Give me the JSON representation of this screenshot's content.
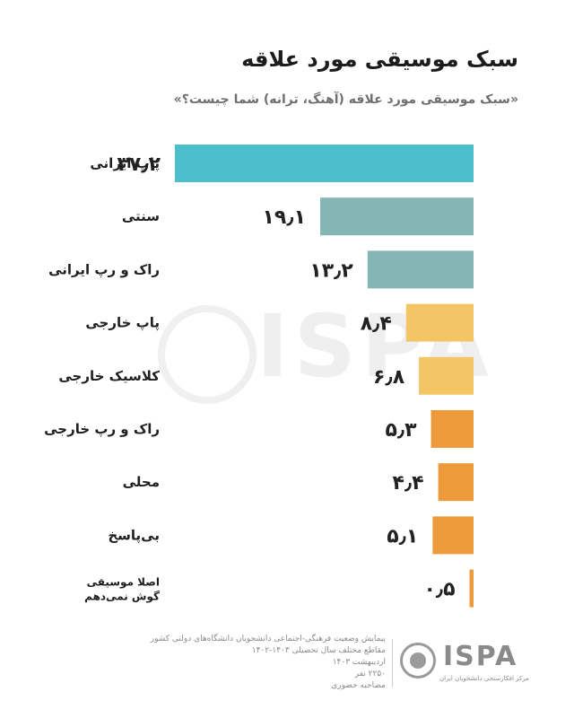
{
  "header": {
    "title": "سبک موسیقی مورد علاقه",
    "subtitle": "«سبک موسیقی مورد علاقه (آهنگ، ترانه) شما چیست؟»"
  },
  "chart_data": {
    "type": "bar",
    "orientation": "horizontal",
    "categories": [
      "پاپ ایرانی",
      "سنتی",
      "راک و رپ ایرانی",
      "پاپ خارجی",
      "کلاسیک خارجی",
      "راک و رپ خارجی",
      "محلی",
      "بی‌پاسخ",
      "اصلا موسیقی گوش نمی‌دهم"
    ],
    "category_lines": [
      [
        "پاپ ایرانی"
      ],
      [
        "سنتی"
      ],
      [
        "راک و رپ ایرانی"
      ],
      [
        "پاپ خارجی"
      ],
      [
        "کلاسیک خارجی"
      ],
      [
        "راک و رپ خارجی"
      ],
      [
        "محلی"
      ],
      [
        "بی‌پاسخ"
      ],
      [
        "اصلا موسیقی",
        "گوش نمی‌دهم"
      ]
    ],
    "values": [
      37.2,
      19.1,
      13.2,
      8.4,
      6.8,
      5.3,
      4.4,
      5.1,
      0.5
    ],
    "value_labels": [
      "۳۷٫۲",
      "۱۹٫۱",
      "۱۳٫۲",
      "۸٫۴",
      "۶٫۸",
      "۵٫۳",
      "۴٫۴",
      "۵٫۱",
      "۰٫۵"
    ],
    "colors": [
      "#4bbfcb",
      "#84b6b6",
      "#84b6b6",
      "#f4c565",
      "#f4c565",
      "#ec9a3c",
      "#ec9a3c",
      "#ec9a3c",
      "#ec9a3c"
    ],
    "xlim": [
      0,
      37.2
    ],
    "grid": false,
    "title": "سبک موسیقی مورد علاقه"
  },
  "watermark": {
    "text": "ISPA"
  },
  "footer": {
    "lines": [
      "پیمایش وضعیت فرهنگی-اجتماعی دانشجویان دانشگاه‌های دولتی کشور",
      "مقاطع مختلف سال تحصیلی ۱۴۰۳-۱۴۰۲",
      "اردیبهشت ۱۴۰۳",
      "۲۲۵۰ نفر",
      "مصاحبه حضوری"
    ]
  },
  "logo": {
    "name": "ISPA",
    "subtitle": "مرکز افکارسنجی دانشجویان ایران"
  }
}
